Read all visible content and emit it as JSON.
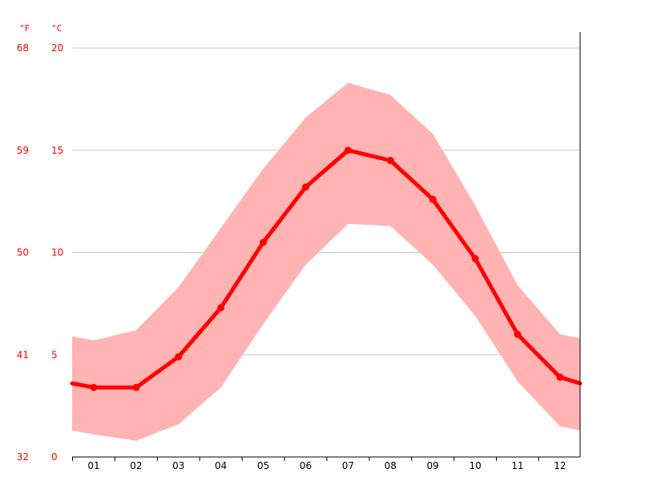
{
  "chart_data": {
    "type": "line",
    "categories": [
      "01",
      "02",
      "03",
      "04",
      "05",
      "06",
      "07",
      "08",
      "09",
      "10",
      "11",
      "12"
    ],
    "series": [
      {
        "values": [
          3.4,
          3.4,
          4.9,
          7.3,
          10.5,
          13.2,
          15.0,
          14.5,
          12.6,
          9.7,
          6.0,
          3.9
        ]
      }
    ],
    "band": {
      "high": [
        5.7,
        6.2,
        8.3,
        11.2,
        14.1,
        16.6,
        18.3,
        17.7,
        15.8,
        12.3,
        8.4,
        6.0
      ],
      "low": [
        1.1,
        0.8,
        1.6,
        3.4,
        6.5,
        9.4,
        11.4,
        11.3,
        9.4,
        6.9,
        3.7,
        1.5
      ],
      "edge_left": [
        5.9,
        1.3
      ],
      "edge_right": [
        5.8,
        1.3
      ]
    },
    "edge_values": {
      "left": 3.6,
      "right": 3.6
    },
    "y_left_unit": "°F",
    "y_right_unit": "°C",
    "y_ticks_f": [
      "68",
      "59",
      "50",
      "41",
      "32"
    ],
    "y_ticks_c": [
      "20",
      "15",
      "10",
      "5",
      "0"
    ],
    "ylim": [
      0,
      20
    ],
    "grid": true,
    "colors": {
      "line": "#ff0000",
      "band": "#ffb3b3",
      "grid": "#c8c8c8",
      "axis": "#000000",
      "label_red": "#ff0000",
      "label_black": "#000000"
    }
  }
}
